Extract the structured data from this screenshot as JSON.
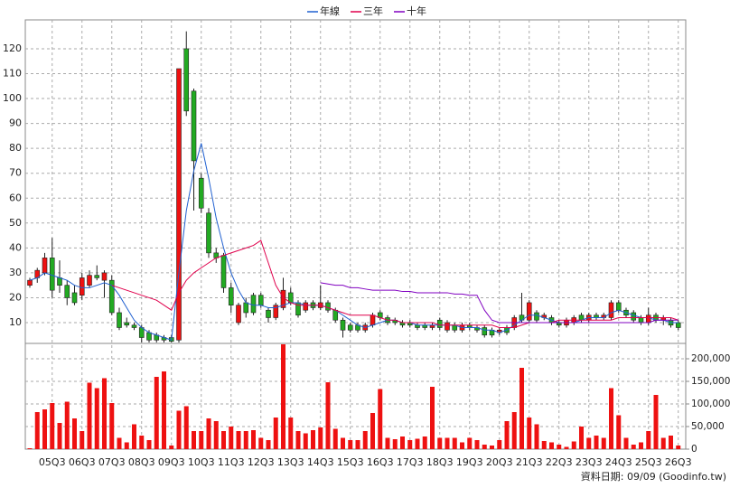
{
  "chart_data": {
    "type": "candlestick",
    "categories": [
      null,
      null,
      null,
      "05Q3",
      null,
      null,
      null,
      "06Q3",
      null,
      null,
      null,
      "07Q3",
      null,
      null,
      null,
      "08Q3",
      null,
      null,
      null,
      "09Q3",
      null,
      null,
      null,
      "10Q3",
      null,
      null,
      null,
      "11Q3",
      null,
      null,
      null,
      "12Q3",
      null,
      null,
      null,
      "13Q3",
      null,
      null,
      null,
      "14Q3",
      null,
      null,
      null,
      "15Q3",
      null,
      null,
      null,
      "16Q3",
      null,
      null,
      null,
      "17Q3",
      null,
      null,
      null,
      "18Q3",
      null,
      null,
      null,
      "19Q3",
      null,
      null,
      null,
      "20Q3",
      null,
      null,
      null,
      "21Q3",
      null,
      null,
      null,
      "22Q3",
      null,
      null,
      null,
      "23Q3",
      null,
      null,
      null,
      "24Q3",
      null,
      null,
      null,
      "25Q3",
      null,
      null,
      null,
      "26Q3"
    ],
    "open": [
      25,
      28,
      30,
      36,
      28,
      25,
      22,
      21,
      25,
      29,
      27,
      27,
      14,
      10,
      9,
      8,
      6,
      5,
      4,
      4,
      3,
      120,
      103,
      68,
      54,
      38,
      37,
      24,
      10,
      18,
      21,
      21,
      15,
      12,
      16,
      22,
      18,
      15,
      18,
      16,
      18,
      15,
      11,
      9,
      9,
      7,
      9,
      14,
      12,
      11,
      10,
      10,
      9,
      9,
      8,
      11,
      7,
      9,
      7,
      9,
      8,
      8,
      7,
      6,
      8,
      8,
      13,
      11,
      14,
      12,
      12,
      10,
      9,
      10,
      13,
      11,
      13,
      12,
      12,
      18,
      15,
      14,
      12,
      10,
      13,
      11,
      11,
      10
    ],
    "high": [
      28,
      32,
      38,
      44,
      35,
      27,
      25,
      30,
      31,
      33,
      31,
      29,
      16,
      12,
      10,
      9,
      7,
      6,
      5,
      5,
      112,
      127,
      104,
      70,
      56,
      40,
      38,
      26,
      18,
      20,
      22,
      22,
      16,
      18,
      28,
      24,
      19,
      19,
      19,
      25,
      19,
      16,
      12,
      10,
      10,
      10,
      14,
      15,
      13,
      12,
      11,
      11,
      10,
      10,
      10,
      12,
      11,
      10,
      10,
      10,
      9,
      9,
      8,
      8,
      9,
      13,
      22,
      19,
      15,
      14,
      13,
      11,
      12,
      13,
      14,
      14,
      14,
      14,
      19,
      19,
      16,
      15,
      13,
      16,
      14,
      13,
      12,
      11
    ],
    "low": [
      24,
      26,
      29,
      20,
      22,
      17,
      17,
      19,
      24,
      27,
      20,
      13,
      7,
      8,
      7,
      2,
      2,
      2,
      2,
      2,
      2,
      93,
      55,
      54,
      36,
      34,
      22,
      14,
      9,
      12,
      13,
      16,
      10,
      11,
      15,
      17,
      12,
      14,
      15,
      15,
      14,
      10,
      4,
      6,
      6,
      6,
      8,
      11,
      9,
      9,
      8,
      8,
      7,
      7,
      7,
      7,
      6,
      6,
      6,
      7,
      6,
      4,
      4,
      5,
      5,
      7,
      10,
      10,
      10,
      11,
      9,
      8,
      8,
      9,
      10,
      10,
      11,
      11,
      11,
      14,
      12,
      10,
      9,
      9,
      10,
      9,
      8,
      7
    ],
    "close": [
      27,
      31,
      36,
      23,
      25,
      20,
      18,
      28,
      29,
      28,
      30,
      14,
      8,
      9,
      8,
      4,
      3,
      3,
      3,
      2.5,
      112,
      95,
      75,
      56,
      38,
      36,
      24,
      17,
      17,
      14,
      14,
      17,
      12,
      17,
      23,
      18,
      13,
      18,
      16,
      18,
      15,
      11,
      7,
      7,
      7,
      9,
      13,
      12,
      10,
      10,
      9,
      9,
      8,
      8,
      9,
      8,
      10,
      7,
      9,
      8,
      7,
      5,
      5,
      7,
      6,
      12,
      11,
      18,
      11,
      13,
      10,
      9,
      11,
      12,
      11,
      13,
      12,
      13,
      18,
      15,
      13,
      11,
      10,
      13,
      11,
      12,
      9,
      8
    ],
    "up_color": "#ee1111",
    "down_color": "#22aa22",
    "volume": {
      "color": "#ee1111",
      "values": [
        2000,
        82000,
        88000,
        102000,
        58000,
        105000,
        68000,
        40000,
        147000,
        135000,
        157000,
        102000,
        25000,
        15000,
        55000,
        30000,
        20000,
        160000,
        172000,
        8000,
        85000,
        95000,
        40000,
        40000,
        68000,
        62000,
        40000,
        50000,
        40000,
        40000,
        42000,
        25000,
        20000,
        70000,
        232000,
        70000,
        40000,
        35000,
        42000,
        48000,
        148000,
        45000,
        25000,
        20000,
        20000,
        40000,
        80000,
        133000,
        25000,
        22000,
        28000,
        20000,
        23000,
        28000,
        138000,
        25000,
        25000,
        25000,
        15000,
        25000,
        20000,
        10000,
        8000,
        20000,
        62000,
        82000,
        180000,
        70000,
        55000,
        18000,
        15000,
        10000,
        5000,
        17000,
        50000,
        25000,
        30000,
        25000,
        135000,
        75000,
        25000,
        10000,
        15000,
        40000,
        120000,
        25000,
        30000,
        8000
      ]
    },
    "series": [
      {
        "name": "年線",
        "color": "#2060d0",
        "values": [
          27,
          28,
          30,
          29,
          28,
          27,
          25,
          24,
          24,
          25,
          26,
          25,
          21,
          16,
          11,
          8,
          6,
          5,
          4,
          3,
          30,
          55,
          71,
          82,
          68,
          52,
          40,
          30,
          23,
          18,
          17,
          17,
          16,
          16,
          17,
          18,
          18,
          17,
          17,
          17,
          16,
          15,
          13,
          11,
          9,
          8,
          9,
          10,
          11,
          11,
          10,
          10,
          9,
          9,
          9,
          9,
          9,
          9,
          8,
          8,
          8,
          7,
          7,
          6,
          7,
          9,
          11,
          13,
          13,
          12,
          11,
          10,
          10,
          10,
          11,
          12,
          12,
          12,
          14,
          15,
          14,
          13,
          12,
          12,
          11,
          11,
          10,
          10
        ]
      },
      {
        "name": "三年",
        "color": "#e0004c",
        "values": [
          null,
          null,
          null,
          null,
          null,
          null,
          null,
          null,
          null,
          null,
          null,
          25,
          24,
          23,
          22,
          21,
          20,
          19,
          17,
          15,
          22,
          27,
          30,
          32,
          34,
          36,
          37,
          38,
          39,
          40,
          41,
          43,
          34,
          25,
          20,
          18,
          17,
          17,
          17,
          17,
          16,
          15,
          14,
          13,
          13,
          13,
          13,
          12,
          11,
          11,
          10,
          10,
          10,
          10,
          10,
          9,
          9,
          9,
          9,
          9,
          9,
          9,
          9,
          8,
          8,
          8,
          9,
          10,
          10,
          10,
          10,
          11,
          11,
          11,
          11,
          11,
          11,
          11,
          11,
          12,
          12,
          12,
          12,
          12,
          12,
          12,
          12,
          11
        ]
      },
      {
        "name": "十年",
        "color": "#8000c0",
        "values": [
          null,
          null,
          null,
          null,
          null,
          null,
          null,
          null,
          null,
          null,
          null,
          null,
          null,
          null,
          null,
          null,
          null,
          null,
          null,
          null,
          null,
          null,
          null,
          null,
          null,
          null,
          null,
          null,
          null,
          null,
          null,
          null,
          null,
          null,
          null,
          null,
          null,
          null,
          null,
          26,
          25.5,
          25,
          25,
          24,
          24,
          23.5,
          23,
          23,
          23,
          23,
          22.5,
          22.5,
          22,
          22,
          22,
          22,
          22,
          21.5,
          21.5,
          21,
          21,
          15,
          11,
          10,
          10,
          10,
          10,
          10,
          10,
          10,
          10,
          10,
          10,
          10,
          10,
          10,
          10,
          10,
          10,
          10,
          10,
          10,
          10,
          10,
          11,
          11,
          11,
          11
        ]
      }
    ],
    "ylim": [
      1.65,
      131.6
    ],
    "yticks": [
      10,
      20,
      30,
      40,
      50,
      60,
      70,
      80,
      90,
      100,
      110,
      120
    ],
    "y2lim": [
      0,
      234000
    ],
    "y2ticks": [
      0,
      {
        "value": 50000,
        "label": "50,000"
      },
      {
        "value": 100000,
        "label": "100,000"
      },
      {
        "value": 150000,
        "label": "150,000"
      },
      {
        "value": 200000,
        "label": "200,000"
      }
    ],
    "grid": true,
    "legend": "top",
    "footnote": "資料日期: 09/09 (Goodinfo.tw)"
  }
}
